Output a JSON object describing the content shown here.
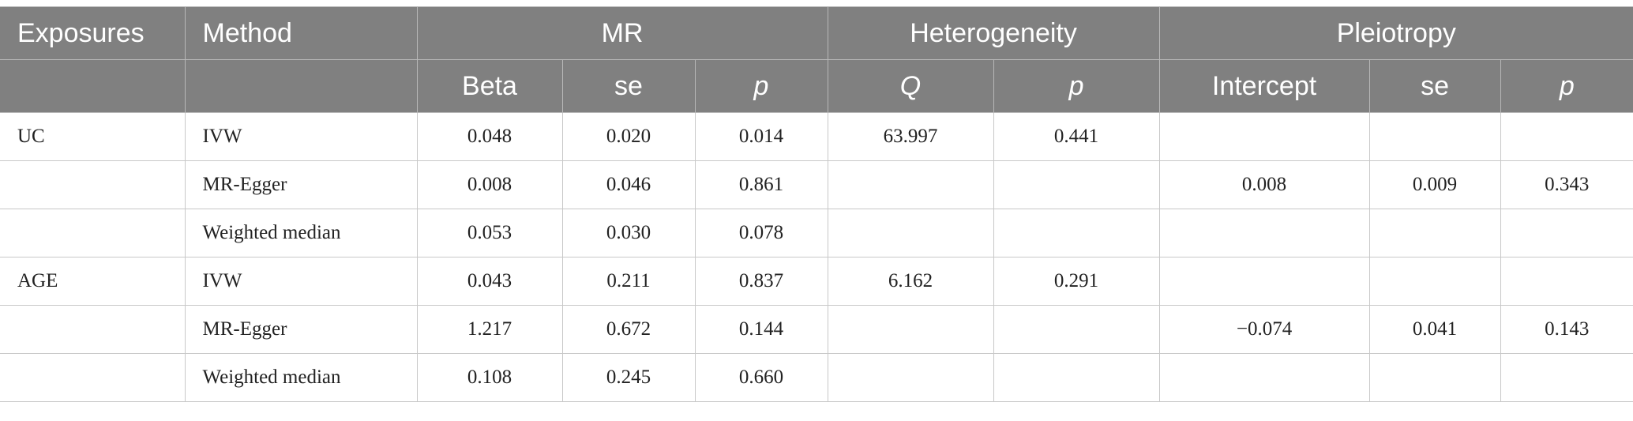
{
  "header": {
    "exposures": "Exposures",
    "method": "Method",
    "mr": "MR",
    "heterogeneity": "Heterogeneity",
    "pleiotropy": "Pleiotropy",
    "sub": {
      "beta": "Beta",
      "mr_se": "se",
      "mr_p": "p",
      "q": "Q",
      "het_p": "p",
      "intercept": "Intercept",
      "pl_se": "se",
      "pl_p": "p"
    }
  },
  "rows": [
    {
      "exposure": "UC",
      "method": "IVW",
      "beta": "0.048",
      "se": "0.020",
      "p": "0.014",
      "q": "63.997",
      "het_p": "0.441",
      "intercept": "",
      "pl_se": "",
      "pl_p": ""
    },
    {
      "exposure": "",
      "method": "MR-Egger",
      "beta": "0.008",
      "se": "0.046",
      "p": "0.861",
      "q": "",
      "het_p": "",
      "intercept": "0.008",
      "pl_se": "0.009",
      "pl_p": "0.343"
    },
    {
      "exposure": "",
      "method": "Weighted median",
      "beta": "0.053",
      "se": "0.030",
      "p": "0.078",
      "q": "",
      "het_p": "",
      "intercept": "",
      "pl_se": "",
      "pl_p": ""
    },
    {
      "exposure": "AGE",
      "method": "IVW",
      "beta": "0.043",
      "se": "0.211",
      "p": "0.837",
      "q": "6.162",
      "het_p": "0.291",
      "intercept": "",
      "pl_se": "",
      "pl_p": ""
    },
    {
      "exposure": "",
      "method": "MR-Egger",
      "beta": "1.217",
      "se": "0.672",
      "p": "0.144",
      "q": "",
      "het_p": "",
      "intercept": "−0.074",
      "pl_se": "0.041",
      "pl_p": "0.143"
    },
    {
      "exposure": "",
      "method": "Weighted median",
      "beta": "0.108",
      "se": "0.245",
      "p": "0.660",
      "q": "",
      "het_p": "",
      "intercept": "",
      "pl_se": "",
      "pl_p": ""
    }
  ]
}
